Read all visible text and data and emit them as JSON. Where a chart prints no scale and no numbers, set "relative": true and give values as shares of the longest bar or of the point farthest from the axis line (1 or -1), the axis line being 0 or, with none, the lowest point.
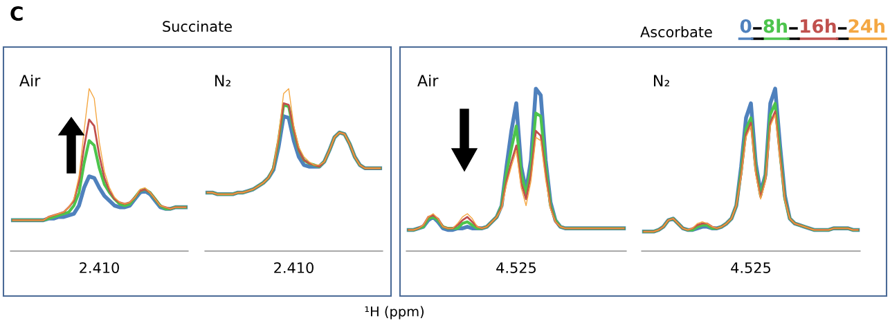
{
  "chart_data": [
    {
      "type": "line",
      "relative": true,
      "title": "Succinate",
      "annotations": [
        "Air",
        "2.410",
        "C"
      ],
      "categories": [
        null,
        null,
        null,
        null,
        null,
        null,
        null,
        null,
        null,
        null,
        null,
        null,
        null,
        null,
        null,
        null,
        null,
        null,
        null,
        null,
        null,
        null,
        null,
        null,
        null,
        null,
        null,
        null,
        null,
        null,
        null,
        null,
        null,
        null,
        null
      ],
      "series": [
        {
          "color": "#4f81bd",
          "values": [
            0.19,
            0.19,
            0.19,
            0.19,
            0.19,
            0.19,
            0.19,
            0.2,
            0.2,
            0.21,
            0.21,
            0.22,
            0.23,
            0.28,
            0.39,
            0.46,
            0.45,
            0.39,
            0.34,
            0.31,
            0.28,
            0.27,
            0.27,
            0.28,
            0.32,
            0.36,
            0.37,
            0.35,
            0.31,
            0.27,
            0.26,
            0.26,
            0.27,
            0.27,
            0.27
          ]
        },
        {
          "color": "#4cc44c",
          "values": [
            0.19,
            0.19,
            0.19,
            0.19,
            0.19,
            0.19,
            0.19,
            0.2,
            0.21,
            0.22,
            0.23,
            0.24,
            0.28,
            0.36,
            0.54,
            0.68,
            0.65,
            0.51,
            0.41,
            0.36,
            0.32,
            0.29,
            0.28,
            0.29,
            0.33,
            0.37,
            0.38,
            0.36,
            0.32,
            0.28,
            0.26,
            0.26,
            0.27,
            0.27,
            0.27
          ]
        },
        {
          "color": "#c0504d",
          "values": [
            0.19,
            0.19,
            0.19,
            0.19,
            0.19,
            0.19,
            0.19,
            0.21,
            0.22,
            0.23,
            0.24,
            0.27,
            0.31,
            0.43,
            0.64,
            0.81,
            0.77,
            0.59,
            0.45,
            0.37,
            0.32,
            0.3,
            0.29,
            0.3,
            0.33,
            0.37,
            0.38,
            0.36,
            0.32,
            0.28,
            0.27,
            0.26,
            0.27,
            0.27,
            0.27
          ]
        },
        {
          "color": "#f4a742",
          "values": [
            0.19,
            0.19,
            0.19,
            0.19,
            0.19,
            0.19,
            0.19,
            0.21,
            0.22,
            0.23,
            0.24,
            0.27,
            0.32,
            0.46,
            0.74,
            1.0,
            0.94,
            0.67,
            0.49,
            0.39,
            0.33,
            0.3,
            0.29,
            0.3,
            0.33,
            0.38,
            0.39,
            0.36,
            0.32,
            0.28,
            0.27,
            0.26,
            0.27,
            0.27,
            0.27
          ]
        }
      ]
    },
    {
      "type": "line",
      "relative": true,
      "xlabel": "¹H (ppm)",
      "annotations": [
        "N₂",
        "2.410"
      ],
      "categories": [
        null,
        null,
        null,
        null,
        null,
        null,
        null,
        null,
        null,
        null,
        null,
        null,
        null,
        null,
        null,
        null,
        null,
        null,
        null,
        null,
        null,
        null,
        null,
        null,
        null,
        null,
        null,
        null,
        null,
        null,
        null,
        null,
        null,
        null,
        null
      ],
      "series": [
        {
          "color": "#4f81bd",
          "values": [
            0.36,
            0.36,
            0.35,
            0.35,
            0.35,
            0.35,
            0.36,
            0.36,
            0.37,
            0.38,
            0.4,
            0.42,
            0.45,
            0.5,
            0.64,
            0.83,
            0.82,
            0.68,
            0.58,
            0.53,
            0.52,
            0.52,
            0.52,
            0.55,
            0.62,
            0.7,
            0.73,
            0.72,
            0.66,
            0.58,
            0.53,
            0.51,
            0.51,
            0.51,
            0.51
          ]
        },
        {
          "color": "#4cc44c",
          "values": [
            0.36,
            0.36,
            0.35,
            0.35,
            0.35,
            0.35,
            0.36,
            0.36,
            0.37,
            0.38,
            0.4,
            0.42,
            0.45,
            0.51,
            0.68,
            0.9,
            0.89,
            0.74,
            0.62,
            0.56,
            0.54,
            0.53,
            0.52,
            0.55,
            0.62,
            0.7,
            0.73,
            0.72,
            0.66,
            0.58,
            0.53,
            0.51,
            0.51,
            0.51,
            0.51
          ]
        },
        {
          "color": "#c0504d",
          "values": [
            0.36,
            0.36,
            0.35,
            0.35,
            0.35,
            0.35,
            0.36,
            0.36,
            0.37,
            0.38,
            0.4,
            0.42,
            0.45,
            0.51,
            0.69,
            0.91,
            0.9,
            0.75,
            0.62,
            0.56,
            0.54,
            0.53,
            0.52,
            0.55,
            0.62,
            0.7,
            0.73,
            0.72,
            0.66,
            0.58,
            0.53,
            0.51,
            0.51,
            0.51,
            0.51
          ]
        },
        {
          "color": "#f4a742",
          "values": [
            0.36,
            0.36,
            0.35,
            0.35,
            0.35,
            0.35,
            0.36,
            0.36,
            0.37,
            0.38,
            0.4,
            0.42,
            0.45,
            0.51,
            0.71,
            0.97,
            1.0,
            0.77,
            0.64,
            0.58,
            0.55,
            0.53,
            0.53,
            0.55,
            0.62,
            0.7,
            0.73,
            0.72,
            0.66,
            0.58,
            0.53,
            0.51,
            0.51,
            0.51,
            0.51
          ]
        }
      ]
    },
    {
      "type": "line",
      "relative": true,
      "annotations": [
        "Air",
        "4.525"
      ],
      "categories": [
        null,
        null,
        null,
        null,
        null,
        null,
        null,
        null,
        null,
        null,
        null,
        null,
        null,
        null,
        null,
        null,
        null,
        null,
        null,
        null,
        null,
        null,
        null,
        null,
        null,
        null,
        null,
        null,
        null,
        null,
        null,
        null,
        null,
        null,
        null,
        null,
        null,
        null,
        null,
        null,
        null,
        null,
        null,
        null,
        null
      ],
      "series": [
        {
          "color": "#4f81bd",
          "values": [
            0.13,
            0.13,
            0.14,
            0.15,
            0.19,
            0.21,
            0.18,
            0.14,
            0.13,
            0.13,
            0.14,
            0.14,
            0.15,
            0.14,
            0.14,
            0.14,
            0.15,
            0.18,
            0.21,
            0.28,
            0.52,
            0.74,
            0.91,
            0.52,
            0.37,
            0.56,
            1.0,
            0.96,
            0.56,
            0.3,
            0.19,
            0.15,
            0.14,
            0.14,
            0.14,
            0.14,
            0.14,
            0.14,
            0.14,
            0.14,
            0.14,
            0.14,
            0.14,
            0.14,
            0.14
          ]
        },
        {
          "color": "#4cc44c",
          "values": [
            0.13,
            0.13,
            0.14,
            0.15,
            0.2,
            0.21,
            0.19,
            0.15,
            0.14,
            0.14,
            0.14,
            0.17,
            0.18,
            0.16,
            0.14,
            0.14,
            0.15,
            0.18,
            0.21,
            0.28,
            0.48,
            0.63,
            0.77,
            0.48,
            0.35,
            0.51,
            0.85,
            0.83,
            0.52,
            0.28,
            0.19,
            0.15,
            0.14,
            0.14,
            0.14,
            0.14,
            0.14,
            0.14,
            0.14,
            0.14,
            0.14,
            0.14,
            0.14,
            0.14,
            0.14
          ]
        },
        {
          "color": "#c0504d",
          "values": [
            0.13,
            0.13,
            0.14,
            0.16,
            0.21,
            0.22,
            0.2,
            0.15,
            0.14,
            0.14,
            0.16,
            0.19,
            0.21,
            0.18,
            0.15,
            0.14,
            0.15,
            0.18,
            0.21,
            0.27,
            0.43,
            0.55,
            0.65,
            0.42,
            0.32,
            0.47,
            0.74,
            0.71,
            0.48,
            0.27,
            0.18,
            0.15,
            0.14,
            0.14,
            0.14,
            0.14,
            0.14,
            0.14,
            0.14,
            0.14,
            0.14,
            0.14,
            0.14,
            0.14,
            0.14
          ]
        },
        {
          "color": "#f4a742",
          "values": [
            0.13,
            0.13,
            0.14,
            0.16,
            0.21,
            0.23,
            0.2,
            0.15,
            0.14,
            0.14,
            0.17,
            0.21,
            0.23,
            0.2,
            0.15,
            0.14,
            0.15,
            0.18,
            0.21,
            0.26,
            0.41,
            0.52,
            0.62,
            0.39,
            0.28,
            0.43,
            0.7,
            0.68,
            0.44,
            0.26,
            0.18,
            0.15,
            0.14,
            0.14,
            0.14,
            0.14,
            0.14,
            0.14,
            0.14,
            0.14,
            0.14,
            0.14,
            0.14,
            0.14,
            0.14
          ]
        }
      ]
    },
    {
      "type": "line",
      "relative": true,
      "title": "Ascorbate",
      "legend": "top right",
      "annotations": [
        "N₂",
        "4.525"
      ],
      "categories": [
        null,
        null,
        null,
        null,
        null,
        null,
        null,
        null,
        null,
        null,
        null,
        null,
        null,
        null,
        null,
        null,
        null,
        null,
        null,
        null,
        null,
        null,
        null,
        null,
        null,
        null,
        null,
        null,
        null,
        null,
        null,
        null,
        null,
        null,
        null,
        null,
        null,
        null,
        null,
        null,
        null,
        null,
        null,
        null,
        null
      ],
      "series": [
        {
          "name": "0",
          "color": "#4f81bd",
          "values": [
            0.12,
            0.12,
            0.12,
            0.13,
            0.15,
            0.19,
            0.2,
            0.17,
            0.14,
            0.13,
            0.13,
            0.14,
            0.15,
            0.15,
            0.14,
            0.14,
            0.15,
            0.17,
            0.2,
            0.28,
            0.52,
            0.82,
            0.91,
            0.54,
            0.36,
            0.47,
            0.91,
            1.0,
            0.65,
            0.34,
            0.2,
            0.17,
            0.16,
            0.15,
            0.14,
            0.13,
            0.13,
            0.13,
            0.13,
            0.14,
            0.14,
            0.14,
            0.14,
            0.13,
            0.13
          ]
        },
        {
          "name": "8h",
          "color": "#4cc44c",
          "values": [
            0.12,
            0.12,
            0.12,
            0.13,
            0.15,
            0.19,
            0.2,
            0.17,
            0.14,
            0.13,
            0.13,
            0.15,
            0.16,
            0.16,
            0.14,
            0.14,
            0.15,
            0.17,
            0.2,
            0.28,
            0.49,
            0.75,
            0.82,
            0.51,
            0.34,
            0.46,
            0.84,
            0.91,
            0.6,
            0.32,
            0.2,
            0.17,
            0.16,
            0.15,
            0.14,
            0.13,
            0.13,
            0.13,
            0.13,
            0.14,
            0.14,
            0.14,
            0.14,
            0.13,
            0.13
          ]
        },
        {
          "name": "16h",
          "color": "#c0504d",
          "values": [
            0.12,
            0.12,
            0.12,
            0.13,
            0.15,
            0.19,
            0.2,
            0.17,
            0.14,
            0.13,
            0.14,
            0.16,
            0.17,
            0.17,
            0.15,
            0.14,
            0.15,
            0.17,
            0.2,
            0.28,
            0.47,
            0.72,
            0.79,
            0.49,
            0.33,
            0.44,
            0.79,
            0.86,
            0.58,
            0.32,
            0.2,
            0.17,
            0.16,
            0.15,
            0.14,
            0.13,
            0.13,
            0.13,
            0.13,
            0.14,
            0.14,
            0.14,
            0.14,
            0.13,
            0.13
          ]
        },
        {
          "name": "24h",
          "color": "#f4a742",
          "values": [
            0.12,
            0.12,
            0.12,
            0.13,
            0.15,
            0.19,
            0.2,
            0.17,
            0.14,
            0.13,
            0.14,
            0.17,
            0.18,
            0.17,
            0.15,
            0.14,
            0.15,
            0.17,
            0.2,
            0.28,
            0.46,
            0.7,
            0.77,
            0.47,
            0.32,
            0.43,
            0.77,
            0.84,
            0.56,
            0.31,
            0.2,
            0.17,
            0.16,
            0.15,
            0.14,
            0.13,
            0.13,
            0.13,
            0.13,
            0.14,
            0.14,
            0.14,
            0.14,
            0.13,
            0.13
          ]
        }
      ]
    }
  ]
}
